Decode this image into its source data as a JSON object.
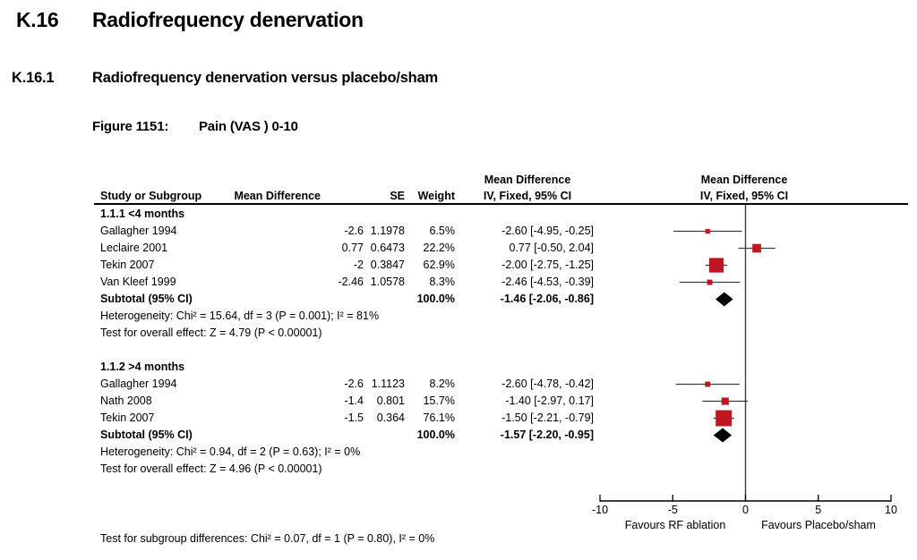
{
  "page": {
    "section_number": "K.16",
    "section_title": "Radiofrequency denervation",
    "subsection_number": "K.16.1",
    "subsection_title": "Radiofrequency denervation versus placebo/sham",
    "figure_label": "Figure 1151:",
    "figure_title": "Pain (VAS ) 0-10"
  },
  "table": {
    "headers": {
      "study": "Study or Subgroup",
      "md": "Mean Difference",
      "se": "SE",
      "weight": "Weight",
      "ci_line1": "Mean Difference",
      "ci_line2": "IV, Fixed, 95% CI",
      "plot_line1": "Mean Difference",
      "plot_line2": "IV, Fixed, 95% CI"
    }
  },
  "chart_data": {
    "type": "forest",
    "effect_measure": "Mean Difference IV, Fixed, 95% CI",
    "axis": {
      "min": -10,
      "max": 10,
      "ticks": [
        -10,
        -5,
        0,
        5,
        10
      ],
      "left_label": "Favours RF ablation",
      "right_label": "Favours Placebo/sham"
    },
    "groups": [
      {
        "label": "1.1.1 <4 months",
        "studies": [
          {
            "study": "Gallagher 1994",
            "md": "-2.6",
            "se": "1.1978",
            "weight": "6.5%",
            "ci_text": "-2.60 [-4.95, -0.25]",
            "est": -2.6,
            "lo": -4.95,
            "hi": -0.25,
            "weight_pct": 6.5
          },
          {
            "study": "Leclaire 2001",
            "md": "0.77",
            "se": "0.6473",
            "weight": "22.2%",
            "ci_text": "0.77 [-0.50, 2.04]",
            "est": 0.77,
            "lo": -0.5,
            "hi": 2.04,
            "weight_pct": 22.2
          },
          {
            "study": "Tekin 2007",
            "md": "-2",
            "se": "0.3847",
            "weight": "62.9%",
            "ci_text": "-2.00 [-2.75, -1.25]",
            "est": -2.0,
            "lo": -2.75,
            "hi": -1.25,
            "weight_pct": 62.9
          },
          {
            "study": "Van Kleef 1999",
            "md": "-2.46",
            "se": "1.0578",
            "weight": "8.3%",
            "ci_text": "-2.46 [-4.53, -0.39]",
            "est": -2.46,
            "lo": -4.53,
            "hi": -0.39,
            "weight_pct": 8.3
          }
        ],
        "subtotal": {
          "label": "Subtotal (95% CI)",
          "weight": "100.0%",
          "ci_text": "-1.46 [-2.06, -0.86]",
          "est": -1.46,
          "lo": -2.06,
          "hi": -0.86
        },
        "heterogeneity": "Heterogeneity: Chi² = 15.64, df = 3 (P = 0.001); I² = 81%",
        "overall_effect": "Test for overall effect: Z = 4.79 (P < 0.00001)"
      },
      {
        "label": "1.1.2 >4 months",
        "studies": [
          {
            "study": "Gallagher 1994",
            "md": "-2.6",
            "se": "1.1123",
            "weight": "8.2%",
            "ci_text": "-2.60 [-4.78, -0.42]",
            "est": -2.6,
            "lo": -4.78,
            "hi": -0.42,
            "weight_pct": 8.2
          },
          {
            "study": "Nath 2008",
            "md": "-1.4",
            "se": "0.801",
            "weight": "15.7%",
            "ci_text": "-1.40 [-2.97, 0.17]",
            "est": -1.4,
            "lo": -2.97,
            "hi": 0.17,
            "weight_pct": 15.7
          },
          {
            "study": "Tekin 2007",
            "md": "-1.5",
            "se": "0.364",
            "weight": "76.1%",
            "ci_text": "-1.50 [-2.21, -0.79]",
            "est": -1.5,
            "lo": -2.21,
            "hi": -0.79,
            "weight_pct": 76.1
          }
        ],
        "subtotal": {
          "label": "Subtotal (95% CI)",
          "weight": "100.0%",
          "ci_text": "-1.57 [-2.20, -0.95]",
          "est": -1.57,
          "lo": -2.2,
          "hi": -0.95
        },
        "heterogeneity": "Heterogeneity: Chi² = 0.94, df = 2 (P = 0.63); I² = 0%",
        "overall_effect": "Test for overall effect: Z = 4.96 (P < 0.00001)"
      }
    ],
    "subgroup_test": "Test for subgroup differences: Chi² = 0.07, df = 1 (P = 0.80), I² = 0%"
  },
  "colors": {
    "square": "#bf161f",
    "diamond": "#000000",
    "whisker": "#3d3d3d",
    "zero_line": "#3d3d3d",
    "axis": "#000000"
  }
}
